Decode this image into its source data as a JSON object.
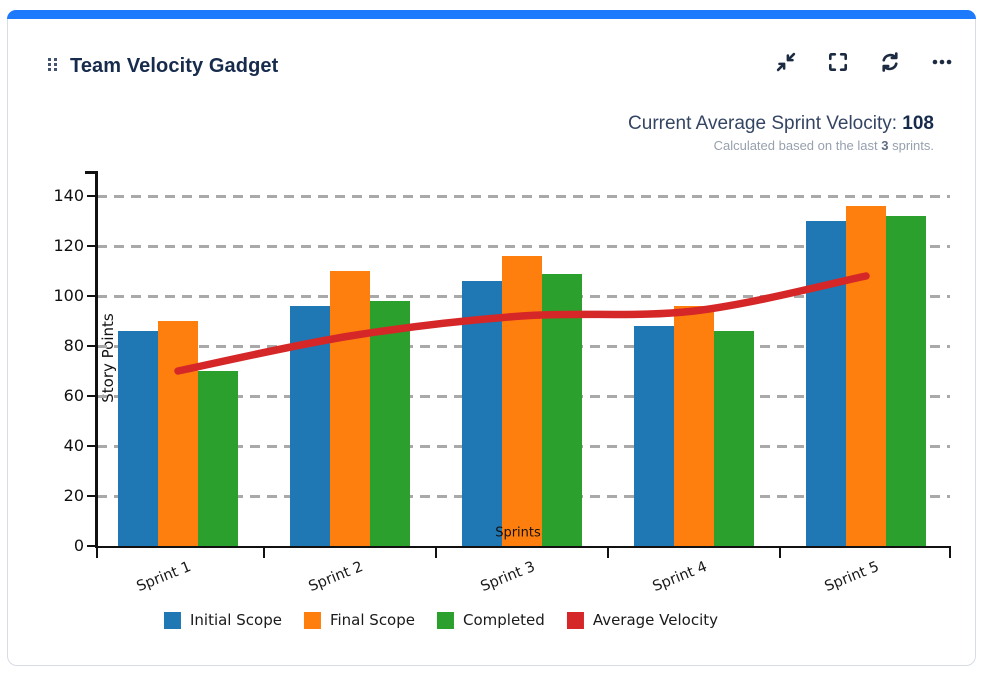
{
  "card": {
    "title": "Team Velocity Gadget",
    "accent_color": "#1D7AFC",
    "icon_color": "#1C2B41",
    "header_icons": [
      "collapse-icon",
      "fullscreen-icon",
      "refresh-icon",
      "more-icon"
    ],
    "summary": {
      "label": "Current Average Sprint Velocity: ",
      "value": "108",
      "subtext_prefix": "Calculated based on the last ",
      "subtext_bold": "3",
      "subtext_suffix": " sprints."
    }
  },
  "chart_data": {
    "type": "bar",
    "title": "",
    "categories": [
      "Sprint 1",
      "Sprint 2",
      "Sprint 3",
      "Sprint 4",
      "Sprint 5"
    ],
    "series": [
      {
        "name": "Initial Scope",
        "type": "bar",
        "color": "#1f77b4",
        "values": [
          86,
          96,
          106,
          88,
          130
        ]
      },
      {
        "name": "Final Scope",
        "type": "bar",
        "color": "#ff7f0e",
        "values": [
          90,
          110,
          116,
          96,
          136
        ]
      },
      {
        "name": "Completed",
        "type": "bar",
        "color": "#2ca02c",
        "values": [
          70,
          98,
          109,
          86,
          132
        ]
      },
      {
        "name": "Average Velocity",
        "type": "line",
        "color": "#d62728",
        "values": [
          70,
          84,
          92,
          94,
          108
        ]
      }
    ],
    "xlabel": "Sprints",
    "ylabel": "Story Points",
    "ylim": [
      0,
      150
    ],
    "yticks": [
      0,
      20,
      40,
      60,
      80,
      100,
      120,
      140
    ],
    "grid": true,
    "grid_style": "dashed",
    "legend_position": "bottom"
  }
}
